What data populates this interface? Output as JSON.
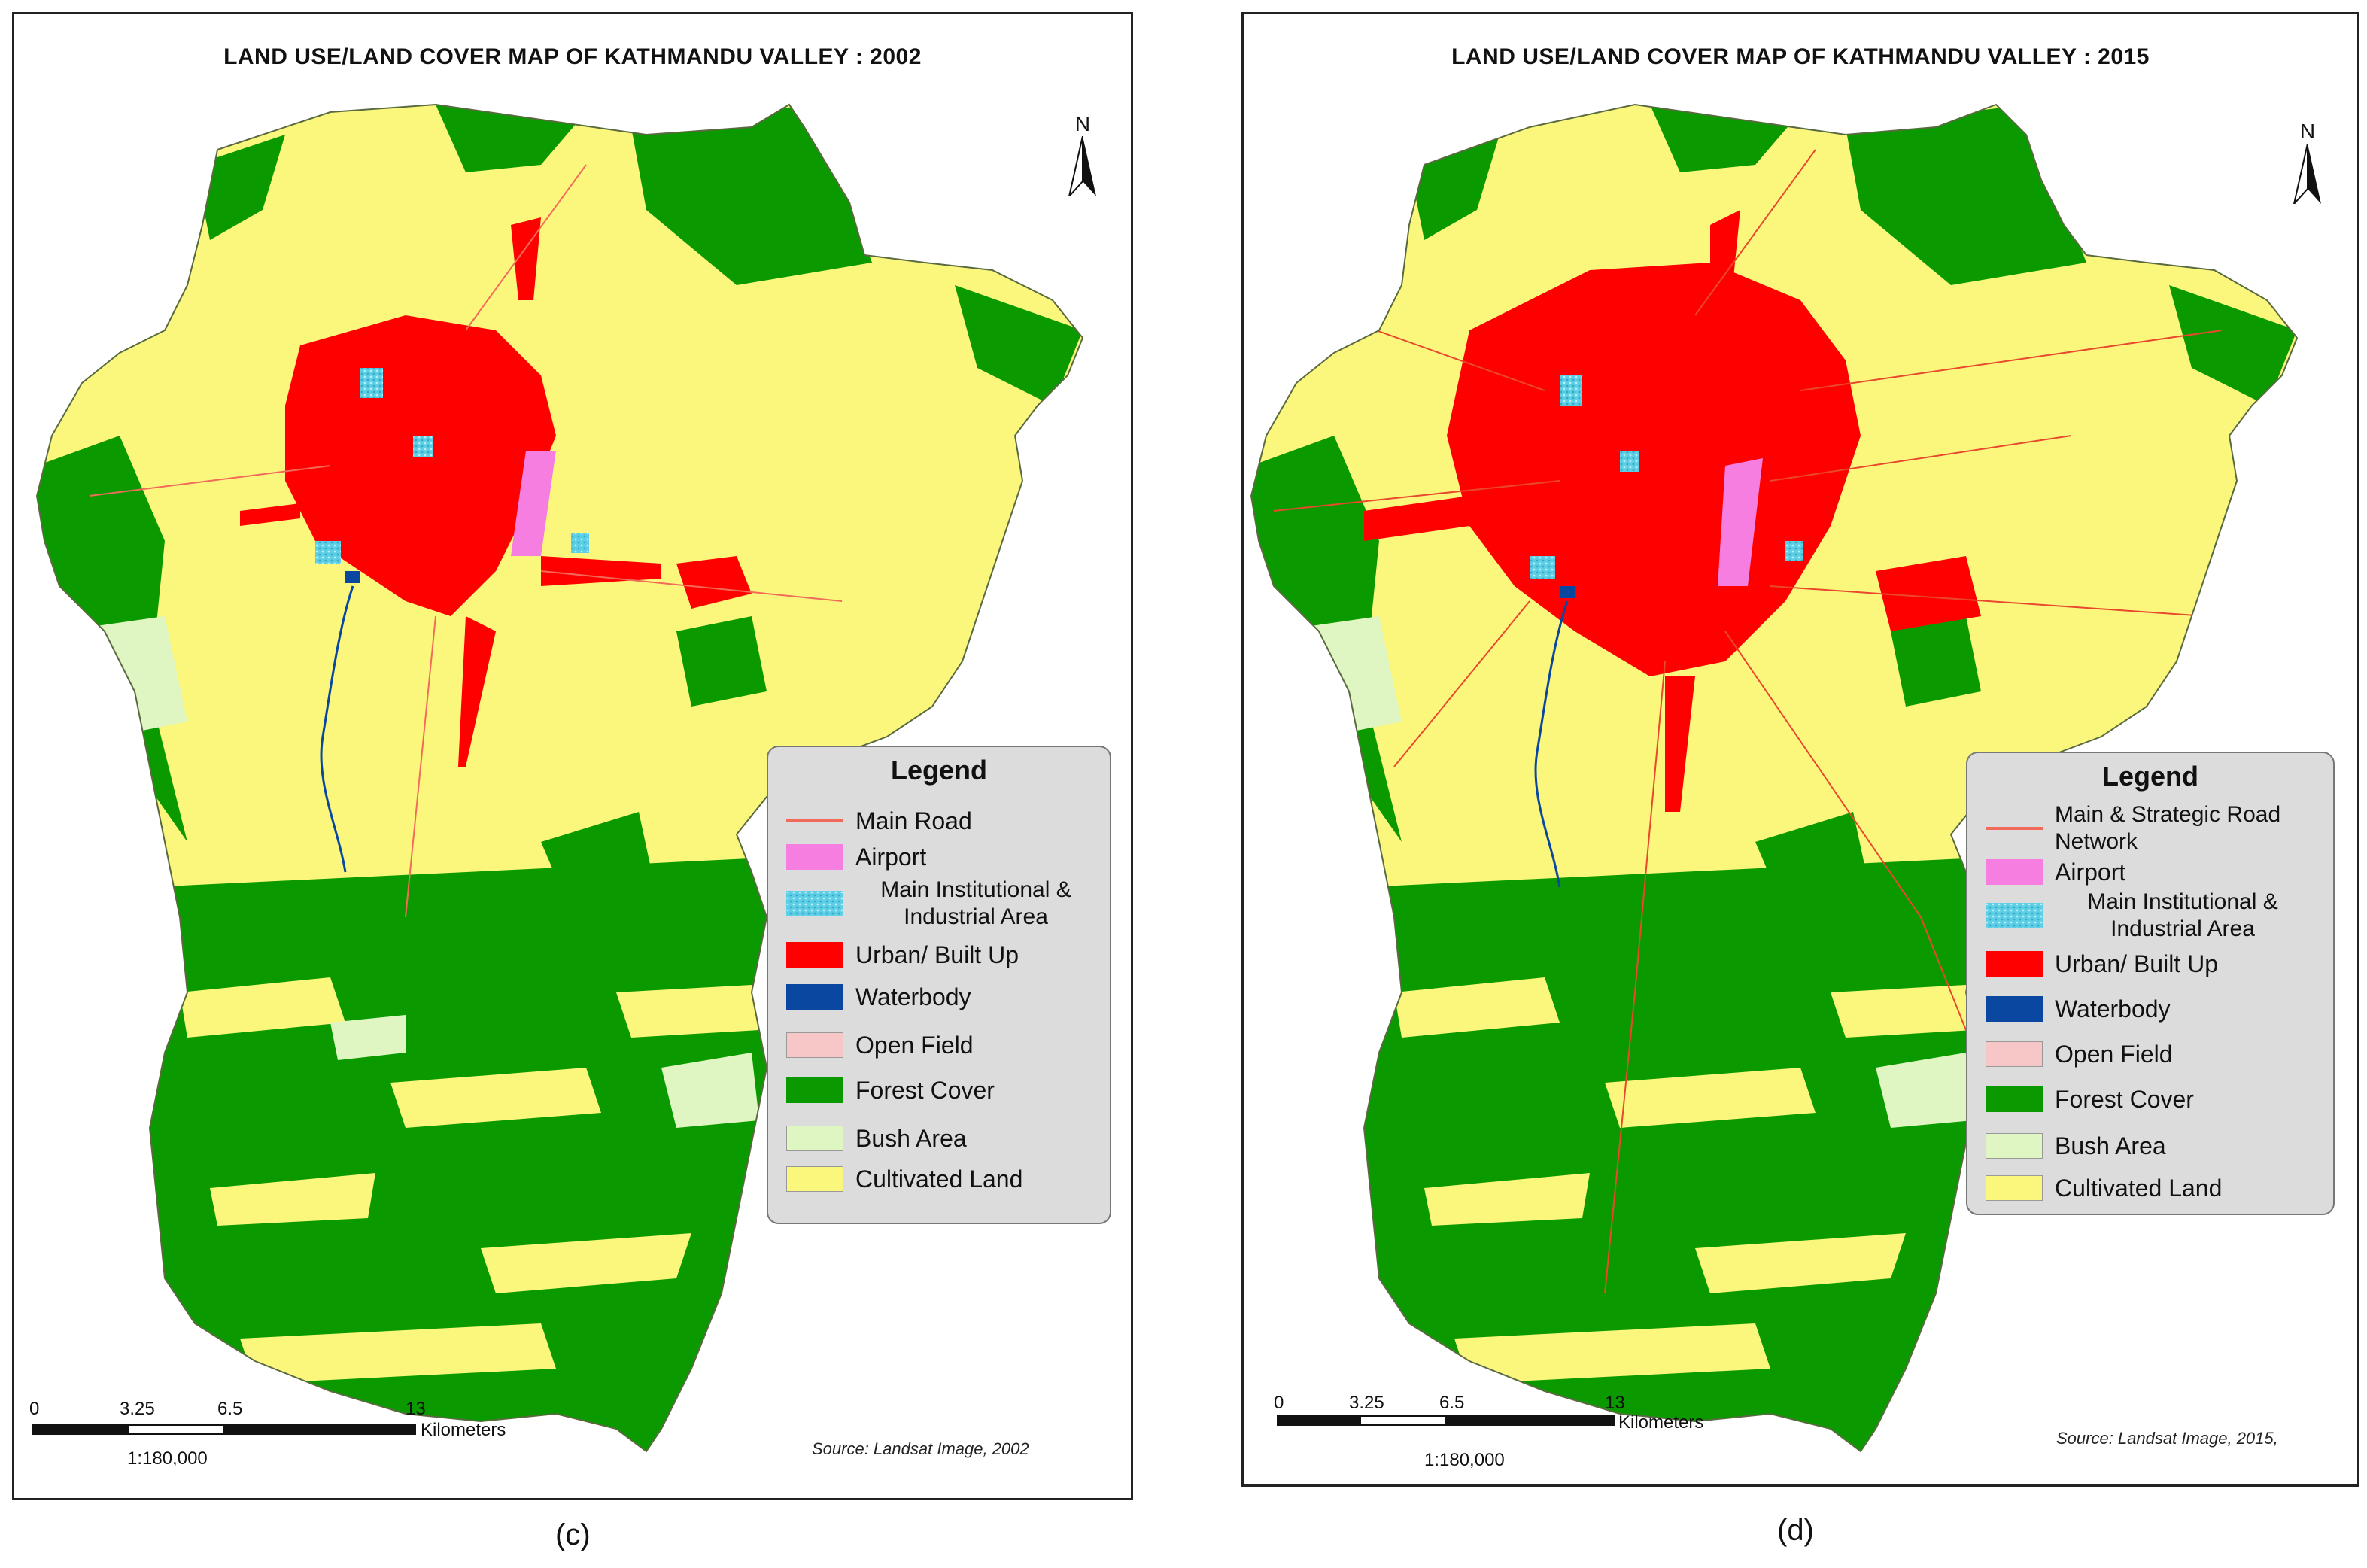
{
  "panels": [
    {
      "id": "c",
      "title": "LAND USE/LAND COVER MAP OF KATHMANDU VALLEY : 2002",
      "north": "N",
      "legend_title": "Legend",
      "legend": [
        {
          "label": "Main Road",
          "color": "#f26b5a",
          "kind": "road"
        },
        {
          "label": "Airport",
          "color": "#f57ee0"
        },
        {
          "label": "Main Institutional & Industrial Area",
          "color": "#5ccfe6",
          "pattern": true
        },
        {
          "label": "Urban/ Built Up",
          "color": "#ff0000"
        },
        {
          "label": "Waterbody",
          "color": "#0a47a0"
        },
        {
          "label": "Open Field",
          "color": "#f7c6c6"
        },
        {
          "label": "Forest Cover",
          "color": "#0a9a00"
        },
        {
          "label": "Bush Area",
          "color": "#dff6c2"
        },
        {
          "label": "Cultivated Land",
          "color": "#fbf77c"
        }
      ],
      "scale_ticks": [
        "0",
        "3.25",
        "6.5",
        "13"
      ],
      "scale_unit": "Kilometers",
      "scale_ratio": "1:180,000",
      "source": "Source: Landsat Image, 2002",
      "letter": "(c)"
    },
    {
      "id": "d",
      "title": "LAND USE/LAND COVER MAP OF KATHMANDU VALLEY : 2015",
      "north": "N",
      "legend_title": "Legend",
      "legend": [
        {
          "label": "Main & Strategic Road Network",
          "color": "#f26b5a",
          "kind": "road"
        },
        {
          "label": "Airport",
          "color": "#f57ee0"
        },
        {
          "label": "Main Institutional & Industrial Area",
          "color": "#5ccfe6",
          "pattern": true
        },
        {
          "label": "Urban/ Built Up",
          "color": "#ff0000"
        },
        {
          "label": "Waterbody",
          "color": "#0a47a0"
        },
        {
          "label": "Open Field",
          "color": "#f7c6c6"
        },
        {
          "label": "Forest Cover",
          "color": "#0a9a00"
        },
        {
          "label": "Bush Area",
          "color": "#dff6c2"
        },
        {
          "label": "Cultivated Land",
          "color": "#fbf77c"
        }
      ],
      "scale_ticks": [
        "0",
        "3.25",
        "6.5",
        "13"
      ],
      "scale_unit": "Kilometers",
      "scale_ratio": "1:180,000",
      "source": "Source: Landsat Image, 2015,",
      "letter": "(d)"
    }
  ]
}
